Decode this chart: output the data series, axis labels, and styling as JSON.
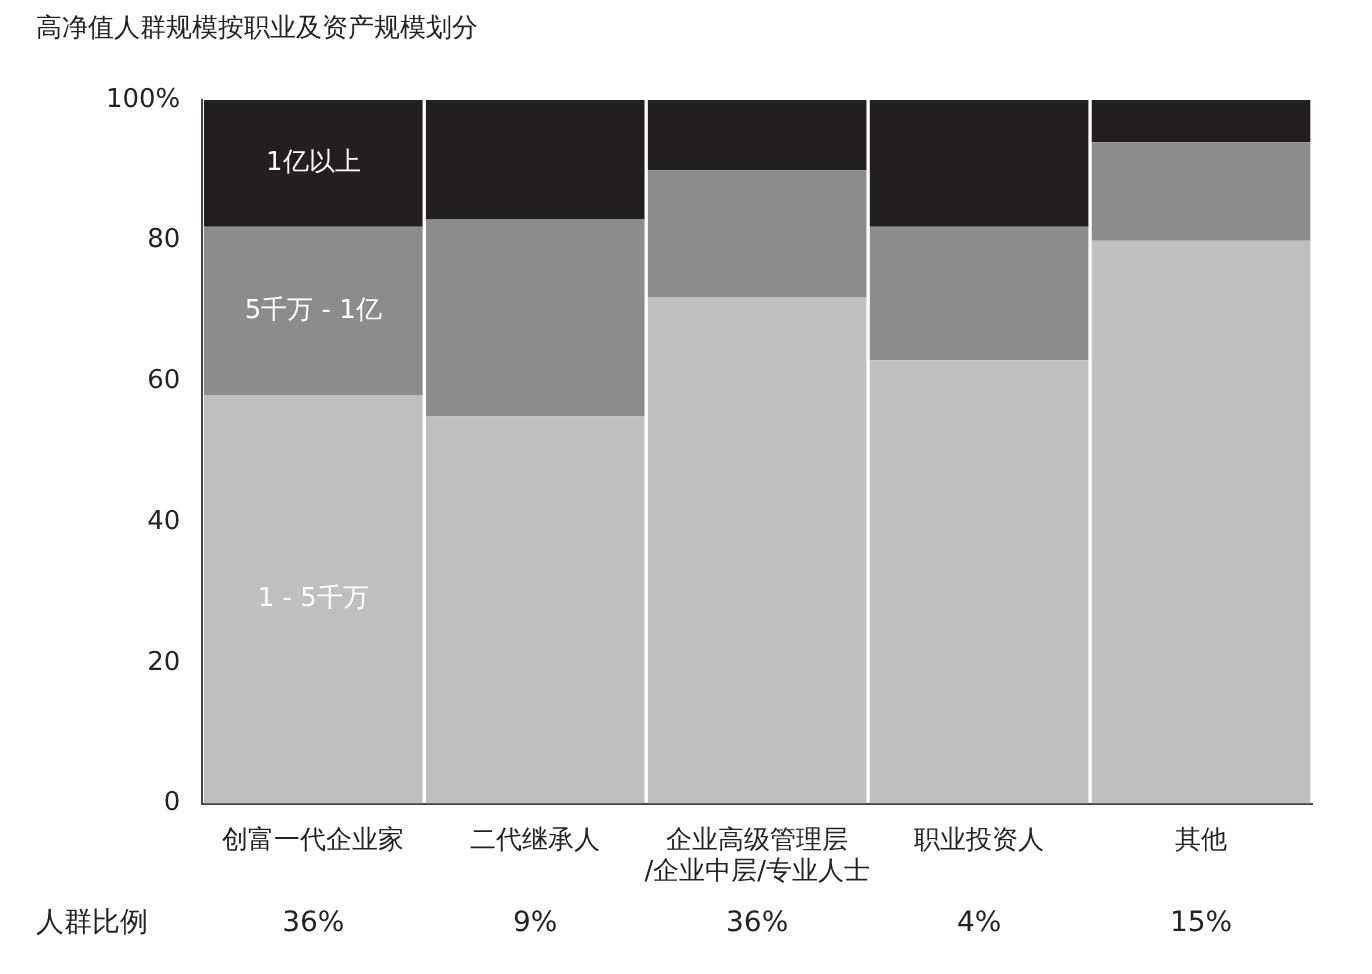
{
  "chart_data": {
    "type": "bar",
    "title": "高净值人群规模按职业及资产规模划分",
    "stacked": true,
    "categories": [
      "创富一代企业家",
      "二代继承人",
      "企业高级管理层\n/企业中层/专业人士",
      "职业投资人",
      "其他"
    ],
    "series": [
      {
        "name": "1 - 5千万",
        "color": "#bfbfbf",
        "values": [
          58,
          55,
          72,
          63,
          80
        ]
      },
      {
        "name": "5千万 - 1亿",
        "color": "#8c8c8c",
        "values": [
          24,
          28,
          18,
          19,
          14
        ]
      },
      {
        "name": "1亿以上",
        "color": "#231f20",
        "values": [
          18,
          17,
          10,
          18,
          6
        ]
      }
    ],
    "ylim": [
      0,
      100
    ],
    "yticks": [
      0,
      20,
      40,
      60,
      80,
      {
        "value": 100,
        "label": "100%"
      }
    ],
    "grid": false,
    "legend": false,
    "annotations": [
      "人群比例",
      "36%",
      "9%",
      "36%",
      "4%",
      "15%"
    ]
  }
}
